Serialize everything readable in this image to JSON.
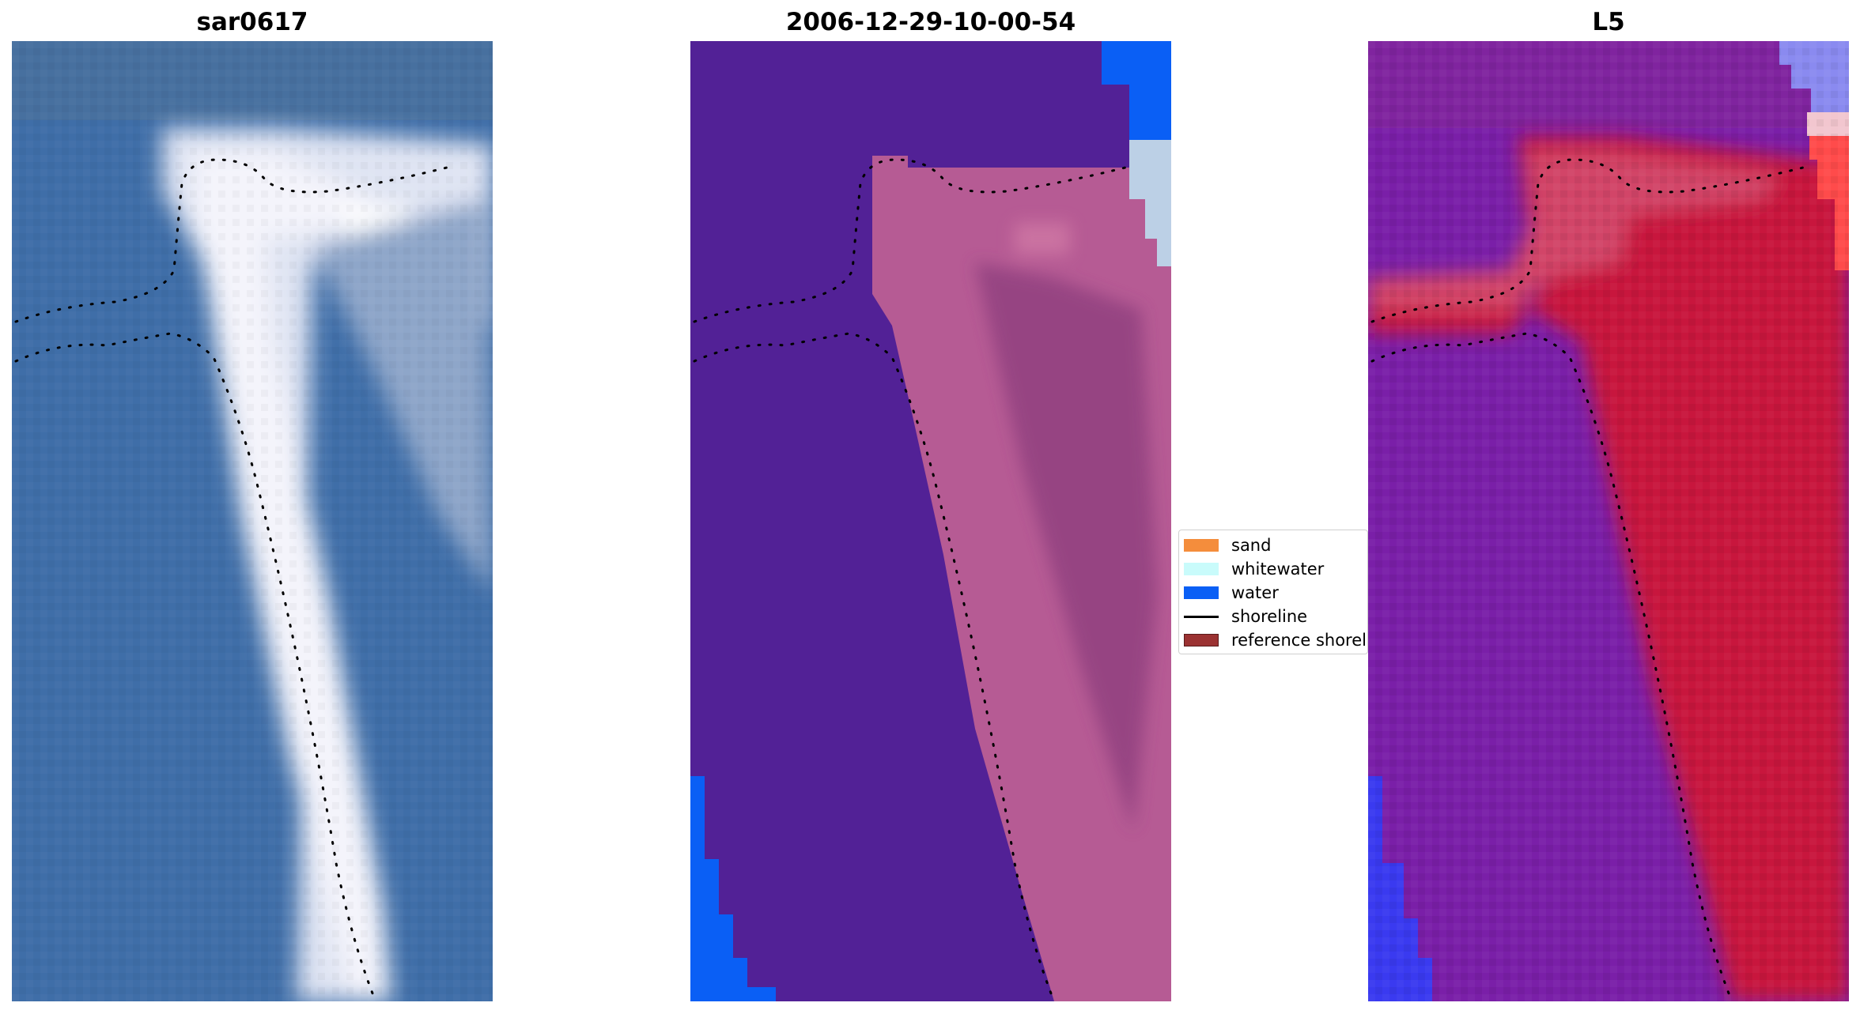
{
  "panels": [
    {
      "title": "sar0617"
    },
    {
      "title": "2006-12-29-10-00-54"
    },
    {
      "title": "L5"
    }
  ],
  "legend": {
    "items": [
      {
        "label": "sand",
        "color": "#f48d3c",
        "kind": "patch"
      },
      {
        "label": "whitewater",
        "color": "#c9fbfb",
        "kind": "patch"
      },
      {
        "label": "water",
        "color": "#0a5ff5",
        "kind": "patch"
      },
      {
        "label": "shoreline",
        "color": "#000000",
        "kind": "line"
      },
      {
        "label": "reference shoreli",
        "color": "#9b3232",
        "kind": "patch"
      }
    ]
  },
  "colors": {
    "rgb_water": "#3f6ea8",
    "rgb_sand": "#f4f4fb",
    "class_background": "#522196",
    "class_sand_overlay": "#b65b94",
    "class_water": "#0a5ff5",
    "class_whitewater": "#bcd0e6",
    "index_low": "#7a1fa8",
    "index_high": "#c8143c",
    "index_water": "#3a3af0",
    "shoreline": "#000000"
  }
}
